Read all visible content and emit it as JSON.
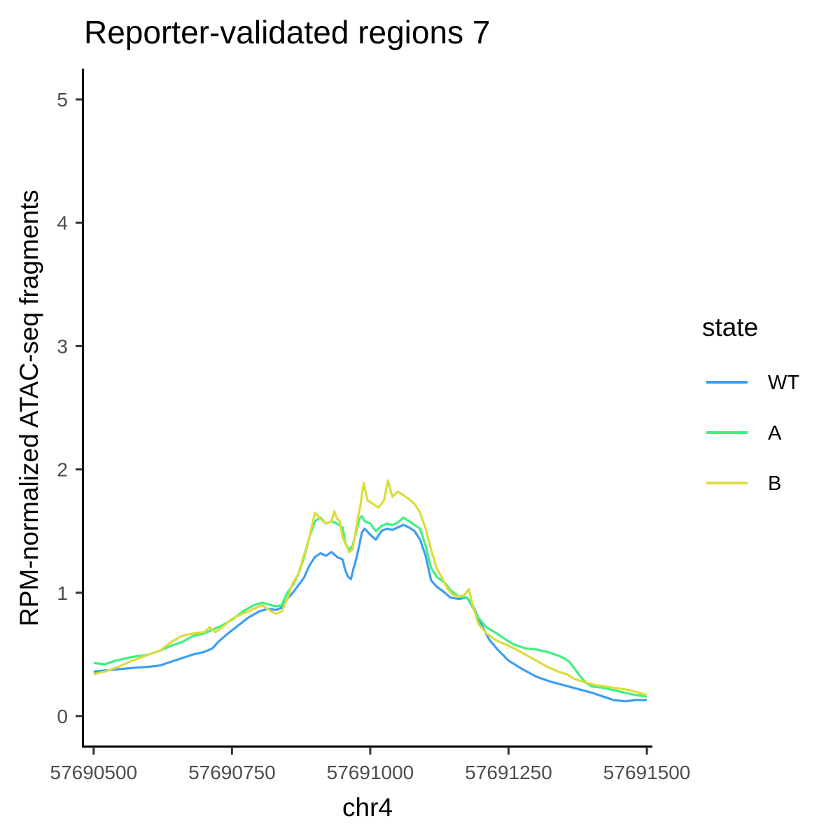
{
  "chart_data": {
    "type": "line",
    "title": "Reporter-validated regions 7",
    "xlabel": "chr4",
    "ylabel": "RPM-normalized ATAC-seq fragments",
    "xlim": [
      57690480,
      57691510
    ],
    "ylim": [
      -0.25,
      5.25
    ],
    "x_ticks": [
      57690500,
      57690750,
      57691000,
      57691250,
      57691500
    ],
    "x_tick_labels": [
      "57690500",
      "57690750",
      "57691000",
      "57691250",
      "57691500"
    ],
    "y_ticks": [
      0,
      1,
      2,
      3,
      4,
      5
    ],
    "y_tick_labels": [
      "0",
      "1",
      "2",
      "3",
      "4",
      "5"
    ],
    "grid": false,
    "legend": {
      "title": "state",
      "position": "right"
    },
    "series": [
      {
        "name": "WT",
        "color": "#3d9df3",
        "points": [
          [
            57690500,
            0.36
          ],
          [
            57690520,
            0.37
          ],
          [
            57690545,
            0.38
          ],
          [
            57690570,
            0.39
          ],
          [
            57690600,
            0.4
          ],
          [
            57690620,
            0.41
          ],
          [
            57690640,
            0.44
          ],
          [
            57690660,
            0.47
          ],
          [
            57690680,
            0.5
          ],
          [
            57690700,
            0.52
          ],
          [
            57690715,
            0.55
          ],
          [
            57690725,
            0.6
          ],
          [
            57690740,
            0.66
          ],
          [
            57690760,
            0.73
          ],
          [
            57690780,
            0.8
          ],
          [
            57690800,
            0.85
          ],
          [
            57690815,
            0.87
          ],
          [
            57690830,
            0.86
          ],
          [
            57690840,
            0.88
          ],
          [
            57690850,
            0.95
          ],
          [
            57690860,
            1.0
          ],
          [
            57690870,
            1.06
          ],
          [
            57690880,
            1.12
          ],
          [
            57690890,
            1.22
          ],
          [
            57690900,
            1.29
          ],
          [
            57690910,
            1.32
          ],
          [
            57690920,
            1.3
          ],
          [
            57690930,
            1.33
          ],
          [
            57690940,
            1.29
          ],
          [
            57690950,
            1.27
          ],
          [
            57690955,
            1.18
          ],
          [
            57690960,
            1.13
          ],
          [
            57690965,
            1.11
          ],
          [
            57690970,
            1.2
          ],
          [
            57690975,
            1.28
          ],
          [
            57690980,
            1.38
          ],
          [
            57690985,
            1.49
          ],
          [
            57690990,
            1.52
          ],
          [
            57691000,
            1.47
          ],
          [
            57691010,
            1.43
          ],
          [
            57691020,
            1.5
          ],
          [
            57691030,
            1.52
          ],
          [
            57691040,
            1.51
          ],
          [
            57691050,
            1.53
          ],
          [
            57691060,
            1.55
          ],
          [
            57691070,
            1.53
          ],
          [
            57691080,
            1.5
          ],
          [
            57691090,
            1.43
          ],
          [
            57691100,
            1.3
          ],
          [
            57691110,
            1.1
          ],
          [
            57691120,
            1.05
          ],
          [
            57691135,
            1.0
          ],
          [
            57691145,
            0.96
          ],
          [
            57691160,
            0.95
          ],
          [
            57691175,
            0.96
          ],
          [
            57691185,
            0.9
          ],
          [
            57691200,
            0.75
          ],
          [
            57691215,
            0.62
          ],
          [
            57691230,
            0.54
          ],
          [
            57691250,
            0.45
          ],
          [
            57691275,
            0.38
          ],
          [
            57691300,
            0.32
          ],
          [
            57691325,
            0.28
          ],
          [
            57691350,
            0.25
          ],
          [
            57691375,
            0.22
          ],
          [
            57691400,
            0.19
          ],
          [
            57691420,
            0.16
          ],
          [
            57691440,
            0.13
          ],
          [
            57691460,
            0.12
          ],
          [
            57691480,
            0.13
          ],
          [
            57691500,
            0.13
          ]
        ]
      },
      {
        "name": "A",
        "color": "#3ef080",
        "points": [
          [
            57690500,
            0.43
          ],
          [
            57690520,
            0.42
          ],
          [
            57690540,
            0.45
          ],
          [
            57690570,
            0.48
          ],
          [
            57690600,
            0.5
          ],
          [
            57690620,
            0.53
          ],
          [
            57690640,
            0.57
          ],
          [
            57690660,
            0.6
          ],
          [
            57690680,
            0.65
          ],
          [
            57690700,
            0.67
          ],
          [
            57690715,
            0.7
          ],
          [
            57690730,
            0.73
          ],
          [
            57690750,
            0.78
          ],
          [
            57690770,
            0.85
          ],
          [
            57690790,
            0.9
          ],
          [
            57690805,
            0.92
          ],
          [
            57690820,
            0.9
          ],
          [
            57690830,
            0.89
          ],
          [
            57690840,
            0.9
          ],
          [
            57690850,
            1.0
          ],
          [
            57690860,
            1.06
          ],
          [
            57690870,
            1.15
          ],
          [
            57690880,
            1.28
          ],
          [
            57690890,
            1.45
          ],
          [
            57690900,
            1.58
          ],
          [
            57690910,
            1.61
          ],
          [
            57690920,
            1.56
          ],
          [
            57690930,
            1.58
          ],
          [
            57690940,
            1.56
          ],
          [
            57690950,
            1.53
          ],
          [
            57690955,
            1.4
          ],
          [
            57690962,
            1.35
          ],
          [
            57690968,
            1.38
          ],
          [
            57690975,
            1.5
          ],
          [
            57690980,
            1.6
          ],
          [
            57690985,
            1.62
          ],
          [
            57690990,
            1.58
          ],
          [
            57691000,
            1.56
          ],
          [
            57691010,
            1.5
          ],
          [
            57691020,
            1.54
          ],
          [
            57691030,
            1.56
          ],
          [
            57691040,
            1.55
          ],
          [
            57691050,
            1.57
          ],
          [
            57691060,
            1.61
          ],
          [
            57691070,
            1.58
          ],
          [
            57691080,
            1.55
          ],
          [
            57691090,
            1.52
          ],
          [
            57691100,
            1.38
          ],
          [
            57691110,
            1.2
          ],
          [
            57691120,
            1.13
          ],
          [
            57691135,
            1.08
          ],
          [
            57691145,
            1.02
          ],
          [
            57691160,
            0.97
          ],
          [
            57691175,
            0.96
          ],
          [
            57691185,
            0.88
          ],
          [
            57691195,
            0.8
          ],
          [
            57691210,
            0.72
          ],
          [
            57691225,
            0.68
          ],
          [
            57691245,
            0.62
          ],
          [
            57691260,
            0.58
          ],
          [
            57691280,
            0.55
          ],
          [
            57691300,
            0.54
          ],
          [
            57691320,
            0.52
          ],
          [
            57691340,
            0.49
          ],
          [
            57691350,
            0.47
          ],
          [
            57691360,
            0.44
          ],
          [
            57691370,
            0.38
          ],
          [
            57691380,
            0.32
          ],
          [
            57691390,
            0.27
          ],
          [
            57691400,
            0.24
          ],
          [
            57691420,
            0.23
          ],
          [
            57691440,
            0.21
          ],
          [
            57691460,
            0.19
          ],
          [
            57691480,
            0.17
          ],
          [
            57691500,
            0.16
          ]
        ]
      },
      {
        "name": "B",
        "color": "#dbdc3c",
        "points": [
          [
            57690500,
            0.34
          ],
          [
            57690520,
            0.36
          ],
          [
            57690545,
            0.4
          ],
          [
            57690570,
            0.45
          ],
          [
            57690600,
            0.5
          ],
          [
            57690620,
            0.53
          ],
          [
            57690640,
            0.6
          ],
          [
            57690660,
            0.65
          ],
          [
            57690680,
            0.67
          ],
          [
            57690700,
            0.68
          ],
          [
            57690710,
            0.72
          ],
          [
            57690720,
            0.68
          ],
          [
            57690735,
            0.73
          ],
          [
            57690750,
            0.79
          ],
          [
            57690770,
            0.83
          ],
          [
            57690790,
            0.87
          ],
          [
            57690805,
            0.9
          ],
          [
            57690820,
            0.85
          ],
          [
            57690830,
            0.83
          ],
          [
            57690840,
            0.85
          ],
          [
            57690850,
            0.95
          ],
          [
            57690860,
            1.08
          ],
          [
            57690870,
            1.15
          ],
          [
            57690880,
            1.3
          ],
          [
            57690890,
            1.45
          ],
          [
            57690895,
            1.55
          ],
          [
            57690900,
            1.65
          ],
          [
            57690910,
            1.6
          ],
          [
            57690920,
            1.56
          ],
          [
            57690930,
            1.58
          ],
          [
            57690935,
            1.66
          ],
          [
            57690940,
            1.6
          ],
          [
            57690945,
            1.58
          ],
          [
            57690950,
            1.45
          ],
          [
            57690955,
            1.4
          ],
          [
            57690962,
            1.33
          ],
          [
            57690968,
            1.35
          ],
          [
            57690972,
            1.45
          ],
          [
            57690978,
            1.62
          ],
          [
            57690982,
            1.7
          ],
          [
            57690988,
            1.89
          ],
          [
            57690995,
            1.75
          ],
          [
            57691005,
            1.72
          ],
          [
            57691015,
            1.69
          ],
          [
            57691025,
            1.75
          ],
          [
            57691032,
            1.91
          ],
          [
            57691040,
            1.78
          ],
          [
            57691050,
            1.82
          ],
          [
            57691060,
            1.79
          ],
          [
            57691070,
            1.76
          ],
          [
            57691080,
            1.72
          ],
          [
            57691090,
            1.65
          ],
          [
            57691100,
            1.52
          ],
          [
            57691110,
            1.35
          ],
          [
            57691120,
            1.2
          ],
          [
            57691130,
            1.12
          ],
          [
            57691140,
            1.03
          ],
          [
            57691150,
            0.98
          ],
          [
            57691160,
            0.97
          ],
          [
            57691170,
            0.98
          ],
          [
            57691178,
            1.03
          ],
          [
            57691185,
            0.9
          ],
          [
            57691195,
            0.75
          ],
          [
            57691210,
            0.67
          ],
          [
            57691225,
            0.62
          ],
          [
            57691245,
            0.58
          ],
          [
            57691260,
            0.55
          ],
          [
            57691280,
            0.5
          ],
          [
            57691300,
            0.45
          ],
          [
            57691320,
            0.4
          ],
          [
            57691340,
            0.36
          ],
          [
            57691355,
            0.34
          ],
          [
            57691370,
            0.3
          ],
          [
            57691390,
            0.27
          ],
          [
            57691410,
            0.25
          ],
          [
            57691440,
            0.23
          ],
          [
            57691470,
            0.21
          ],
          [
            57691500,
            0.17
          ]
        ]
      }
    ]
  }
}
